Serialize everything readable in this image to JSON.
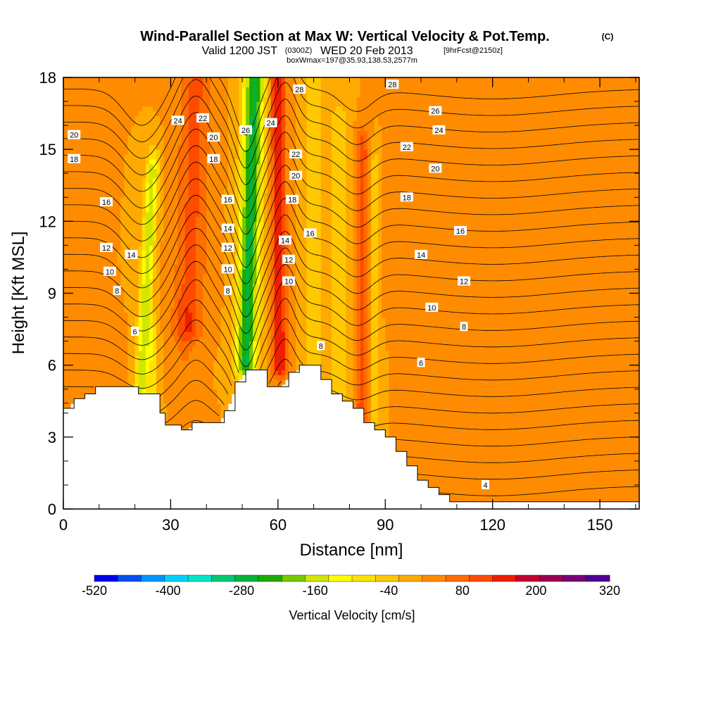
{
  "header": {
    "title": "Wind-Parallel Section at Max W: Vertical Velocity & Pot.Temp.",
    "copyright": "(C)",
    "valid_prefix": "Valid 1200 JST",
    "valid_utc": "(0300Z)",
    "valid_date": "WED 20 Feb 2013",
    "forecast": "[9hrFcst@2150z]",
    "box_info": "boxWmax=197@35.93,138.53,2577m"
  },
  "chart_data": {
    "type": "heatmap",
    "title": "Wind-Parallel Section at Max W: Vertical Velocity & Pot.Temp.",
    "xlabel": "Distance [nm]",
    "ylabel": "Height [Kft MSL]",
    "xlim": [
      0,
      161
    ],
    "ylim": [
      0,
      18
    ],
    "x_ticks": [
      0,
      30,
      60,
      90,
      120,
      150
    ],
    "y_ticks": [
      0,
      3,
      6,
      9,
      12,
      15,
      18
    ],
    "colorbar": {
      "label": "Vertical Velocity [cm/s]",
      "tick_labels": [
        "-520",
        "-400",
        "-280",
        "-160",
        "-40",
        "80",
        "200",
        "320"
      ],
      "colors": [
        "#0000f0",
        "#0050f5",
        "#0096ff",
        "#00d2ff",
        "#00e6c8",
        "#00c878",
        "#00b43c",
        "#1eaa00",
        "#78c800",
        "#d2e600",
        "#ffff00",
        "#ffe100",
        "#ffc800",
        "#ffaa00",
        "#ff8c00",
        "#ff6e00",
        "#ff4b00",
        "#f01e00",
        "#c8002d",
        "#9b0050",
        "#780078",
        "#500096"
      ]
    },
    "background_velocity": 40,
    "velocity_bands": [
      {
        "x": 3,
        "y0": 4,
        "y1": 6.5,
        "halfwidth": 2,
        "w": 70
      },
      {
        "x": 12,
        "y0": 3,
        "y1": 6,
        "halfwidth": 4,
        "w": 75
      },
      {
        "x": 21.5,
        "y0": 4.5,
        "y1": 14,
        "halfwidth": 1.8,
        "w": -150,
        "slope": 0.35
      },
      {
        "x": 25,
        "y0": 4.5,
        "y1": 7,
        "halfwidth": 1.5,
        "w": -60
      },
      {
        "x": 35,
        "y0": 7.5,
        "y1": 18,
        "halfwidth": 4.5,
        "w": 130,
        "slope": 0.2
      },
      {
        "x": 34,
        "y0": 5,
        "y1": 8,
        "halfwidth": 3,
        "w": 80
      },
      {
        "x": 51,
        "y0": 6,
        "y1": 18,
        "halfwidth": 3,
        "w": -250,
        "slope": 0.2
      },
      {
        "x": 60.5,
        "y0": 6,
        "y1": 18,
        "halfwidth": 2,
        "w": 200,
        "slope": -0.05
      },
      {
        "x": 70,
        "y0": 5,
        "y1": 18,
        "halfwidth": 2,
        "w": -40
      },
      {
        "x": 77,
        "y0": 5,
        "y1": 16,
        "halfwidth": 3,
        "w": -30
      },
      {
        "x": 83.5,
        "y0": 3.5,
        "y1": 15,
        "halfwidth": 1.8,
        "w": 150
      },
      {
        "x": 87,
        "y0": 4,
        "y1": 14,
        "halfwidth": 1.2,
        "w": -40
      },
      {
        "x": 95,
        "y0": 8,
        "y1": 18,
        "halfwidth": 3,
        "w": 70
      },
      {
        "x": 110,
        "y0": 2,
        "y1": 18,
        "halfwidth": 6,
        "w": 70
      },
      {
        "x": 131,
        "y0": 5,
        "y1": 12,
        "halfwidth": 3,
        "w": 70
      },
      {
        "x": 141,
        "y0": 1,
        "y1": 4,
        "halfwidth": 3,
        "w": 75
      },
      {
        "x": 150,
        "y0": 8,
        "y1": 18,
        "halfwidth": 6,
        "w": 75
      }
    ],
    "terrain": {
      "x": [
        0,
        3,
        6,
        9,
        12,
        15,
        18,
        21,
        24,
        27,
        28.5,
        30,
        33,
        36,
        39,
        42,
        45,
        48,
        51,
        54,
        57,
        60,
        63,
        66,
        69,
        72,
        75,
        78,
        81,
        84,
        87,
        90,
        93,
        96,
        99,
        102,
        105,
        108,
        111,
        114,
        117,
        120,
        123,
        126,
        129,
        132,
        135,
        138,
        141,
        144,
        147,
        150,
        153,
        156,
        161
      ],
      "y": [
        4.2,
        4.6,
        4.8,
        5.1,
        5.1,
        5.1,
        5.1,
        4.8,
        4.8,
        4.0,
        3.5,
        3.5,
        3.3,
        3.6,
        3.6,
        3.6,
        4.1,
        5.3,
        5.8,
        5.8,
        5.1,
        5.1,
        5.7,
        6.0,
        6.0,
        5.4,
        4.8,
        4.5,
        4.2,
        3.6,
        3.3,
        3.0,
        2.4,
        1.8,
        1.2,
        0.9,
        0.6,
        0.3,
        0.3,
        0.3,
        0.3,
        0.3,
        0.3,
        0.3,
        0.3,
        0.3,
        0.3,
        0.3,
        0.3,
        0.3,
        0.3,
        0.3,
        0.3,
        0.3,
        0.3
      ]
    },
    "theta_contours": {
      "levels": [
        4,
        5,
        6,
        7,
        8,
        9,
        10,
        11,
        12,
        13,
        14,
        15,
        16,
        17,
        18,
        19,
        20,
        21,
        22,
        23,
        24,
        25,
        26,
        27,
        28,
        29
      ],
      "labels": [
        {
          "text": "20",
          "x": 3,
          "y": 15.6
        },
        {
          "text": "18",
          "x": 3,
          "y": 14.6
        },
        {
          "text": "16",
          "x": 12,
          "y": 12.8
        },
        {
          "text": "12",
          "x": 12,
          "y": 10.9
        },
        {
          "text": "14",
          "x": 19,
          "y": 10.6
        },
        {
          "text": "10",
          "x": 13,
          "y": 9.9
        },
        {
          "text": "8",
          "x": 15,
          "y": 9.1
        },
        {
          "text": "6",
          "x": 20,
          "y": 7.4
        },
        {
          "text": "24",
          "x": 32,
          "y": 16.2
        },
        {
          "text": "22",
          "x": 39,
          "y": 16.3
        },
        {
          "text": "20",
          "x": 42,
          "y": 15.5
        },
        {
          "text": "18",
          "x": 42,
          "y": 14.6
        },
        {
          "text": "26",
          "x": 51,
          "y": 15.8
        },
        {
          "text": "24",
          "x": 58,
          "y": 16.1
        },
        {
          "text": "16",
          "x": 46,
          "y": 12.9
        },
        {
          "text": "14",
          "x": 46,
          "y": 11.7
        },
        {
          "text": "12",
          "x": 46,
          "y": 10.9
        },
        {
          "text": "10",
          "x": 46,
          "y": 10.0
        },
        {
          "text": "8",
          "x": 46,
          "y": 9.1
        },
        {
          "text": "28",
          "x": 66,
          "y": 17.5
        },
        {
          "text": "22",
          "x": 65,
          "y": 14.8
        },
        {
          "text": "20",
          "x": 65,
          "y": 13.9
        },
        {
          "text": "18",
          "x": 64,
          "y": 12.9
        },
        {
          "text": "16",
          "x": 69,
          "y": 11.5
        },
        {
          "text": "14",
          "x": 62,
          "y": 11.2
        },
        {
          "text": "12",
          "x": 63,
          "y": 10.4
        },
        {
          "text": "10",
          "x": 63,
          "y": 9.5
        },
        {
          "text": "8",
          "x": 72,
          "y": 6.8
        },
        {
          "text": "28",
          "x": 92,
          "y": 17.7
        },
        {
          "text": "26",
          "x": 104,
          "y": 16.6
        },
        {
          "text": "24",
          "x": 105,
          "y": 15.8
        },
        {
          "text": "22",
          "x": 96,
          "y": 15.1
        },
        {
          "text": "20",
          "x": 104,
          "y": 14.2
        },
        {
          "text": "18",
          "x": 96,
          "y": 13.0
        },
        {
          "text": "16",
          "x": 111,
          "y": 11.6
        },
        {
          "text": "14",
          "x": 100,
          "y": 10.6
        },
        {
          "text": "12",
          "x": 112,
          "y": 9.5
        },
        {
          "text": "10",
          "x": 103,
          "y": 8.4
        },
        {
          "text": "8",
          "x": 112,
          "y": 7.6
        },
        {
          "text": "6",
          "x": 100,
          "y": 6.1
        },
        {
          "text": "4",
          "x": 118,
          "y": 1.0
        }
      ]
    }
  }
}
